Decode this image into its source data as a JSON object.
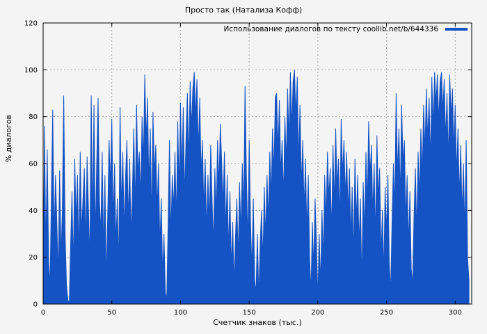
{
  "title": "Просто так (Натализа Кофф)",
  "legend": {
    "label": "Использование диалогов по тексту coollib.net/b/644336"
  },
  "colors": {
    "series": "#1553c4",
    "grid": "#a8a8a8",
    "axis": "#000000",
    "background": "#f4f4f4"
  },
  "chart_data": {
    "type": "area",
    "title": "Просто так (Натализа Кофф)",
    "xlabel": "Счетчик знаков (тыс.)",
    "ylabel": "% диалогов",
    "xlim": [
      0,
      312
    ],
    "ylim": [
      0,
      120
    ],
    "xticks": [
      0,
      50,
      100,
      150,
      200,
      250,
      300
    ],
    "yticks": [
      0,
      20,
      40,
      60,
      80,
      100,
      120
    ],
    "grid": true,
    "legend_position": "top-right",
    "series": [
      {
        "name": "Использование диалогов по тексту coollib.net/b/644336",
        "x_start": 0,
        "x_step": 1,
        "values": [
          10,
          76,
          22,
          66,
          18,
          8,
          45,
          83,
          28,
          55,
          35,
          12,
          57,
          20,
          40,
          89,
          30,
          8,
          2,
          0,
          25,
          48,
          15,
          62,
          35,
          55,
          20,
          65,
          30,
          45,
          58,
          25,
          63,
          40,
          18,
          89,
          35,
          85,
          28,
          60,
          88,
          45,
          30,
          65,
          22,
          55,
          9,
          38,
          70,
          50,
          79,
          35,
          60,
          25,
          45,
          15,
          84,
          40,
          65,
          30,
          55,
          70,
          35,
          62,
          28,
          48,
          75,
          40,
          85,
          55,
          65,
          45,
          80,
          60,
          98,
          70,
          88,
          50,
          75,
          35,
          82,
          55,
          68,
          40,
          60,
          25,
          45,
          12,
          30,
          5,
          2,
          35,
          70,
          28,
          55,
          40,
          65,
          35,
          78,
          48,
          86,
          55,
          84,
          45,
          70,
          90,
          60,
          95,
          75,
          92,
          99,
          80,
          96,
          65,
          88,
          55,
          70,
          40,
          62,
          30,
          55,
          35,
          68,
          45,
          25,
          58,
          38,
          70,
          50,
          77,
          60,
          42,
          65,
          30,
          55,
          22,
          48,
          15,
          35,
          8,
          28,
          45,
          18,
          52,
          30,
          60,
          40,
          93,
          55,
          25,
          70,
          35,
          15,
          45,
          10,
          5,
          30,
          3,
          25,
          40,
          18,
          50,
          28,
          55,
          35,
          65,
          45,
          75,
          55,
          88,
          90,
          65,
          87,
          55,
          70,
          45,
          80,
          60,
          92,
          70,
          99,
          75,
          95,
          100,
          80,
          97,
          60,
          85,
          50,
          70,
          40,
          62,
          30,
          55,
          20,
          5,
          35,
          15,
          45,
          25,
          2,
          30,
          8,
          40,
          18,
          55,
          35,
          65,
          45,
          58,
          30,
          68,
          42,
          75,
          50,
          62,
          35,
          79,
          55,
          70,
          45,
          65,
          38,
          58,
          28,
          50,
          20,
          62,
          35,
          55,
          25,
          45,
          8,
          52,
          30,
          65,
          42,
          78,
          55,
          68,
          38,
          60,
          28,
          72,
          45,
          58,
          20,
          40,
          12,
          50,
          30,
          55,
          18,
          5,
          35,
          60,
          40,
          90,
          55,
          75,
          45,
          85,
          60,
          70,
          35,
          55,
          25,
          48,
          15,
          8,
          38,
          58,
          30,
          65,
          45,
          75,
          55,
          85,
          65,
          92,
          70,
          88,
          60,
          97,
          75,
          99,
          85,
          98,
          78,
          95,
          99,
          82,
          96,
          70,
          90,
          60,
          98,
          80,
          92,
          65,
          85,
          55,
          75,
          45,
          68,
          38,
          60,
          30,
          70,
          20,
          10
        ]
      }
    ]
  }
}
